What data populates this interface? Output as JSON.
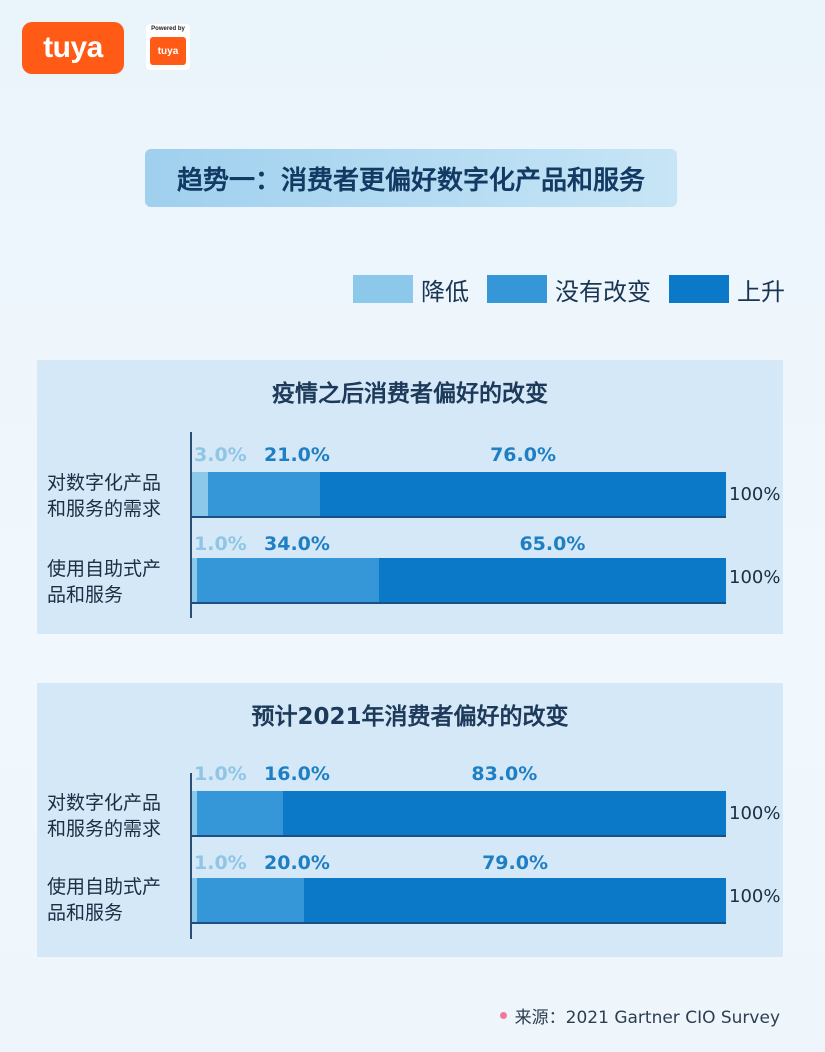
{
  "logos": {
    "brand": "tuya",
    "powered_by": "Powered by",
    "powered_brand": "tuya"
  },
  "title": "趋势一：消费者更偏好数字化产品和服务",
  "legend": [
    {
      "label": "降低",
      "color": "#8cc8ea"
    },
    {
      "label": "没有改变",
      "color": "#3597d8"
    },
    {
      "label": "上升",
      "color": "#0c78c8"
    }
  ],
  "chart_data": [
    {
      "type": "bar",
      "orientation": "horizontal",
      "stacked": true,
      "title": "疫情之后消费者偏好的改变",
      "categories": [
        "对数字化产品和服务的需求",
        "使用自助式产品和服务"
      ],
      "series": [
        {
          "name": "降低",
          "values": [
            3.0,
            1.0
          ],
          "labels": [
            "3.0%",
            "1.0%"
          ]
        },
        {
          "name": "没有改变",
          "values": [
            21.0,
            34.0
          ],
          "labels": [
            "21.0%",
            "34.0%"
          ]
        },
        {
          "name": "上升",
          "values": [
            76.0,
            65.0
          ],
          "labels": [
            "76.0%",
            "65.0%"
          ]
        }
      ],
      "totals": [
        "100%",
        "100%"
      ],
      "xlim": [
        0,
        100
      ]
    },
    {
      "type": "bar",
      "orientation": "horizontal",
      "stacked": true,
      "title": "预计2021年消费者偏好的改变",
      "categories": [
        "对数字化产品和服务的需求",
        "使用自助式产品和服务"
      ],
      "series": [
        {
          "name": "降低",
          "values": [
            1.0,
            1.0
          ],
          "labels": [
            "1.0%",
            "1.0%"
          ]
        },
        {
          "name": "没有改变",
          "values": [
            16.0,
            20.0
          ],
          "labels": [
            "16.0%",
            "20.0%"
          ]
        },
        {
          "name": "上升",
          "values": [
            83.0,
            79.0
          ],
          "labels": [
            "83.0%",
            "79.0%"
          ]
        }
      ],
      "totals": [
        "100%",
        "100%"
      ],
      "xlim": [
        0,
        100
      ]
    }
  ],
  "row_labels": [
    {
      "line1": "对数字化产品",
      "line2": "和服务的需求"
    },
    {
      "line1": "使用自助式产",
      "line2": "品和服务"
    }
  ],
  "source": "来源：2021 Gartner CIO Survey"
}
